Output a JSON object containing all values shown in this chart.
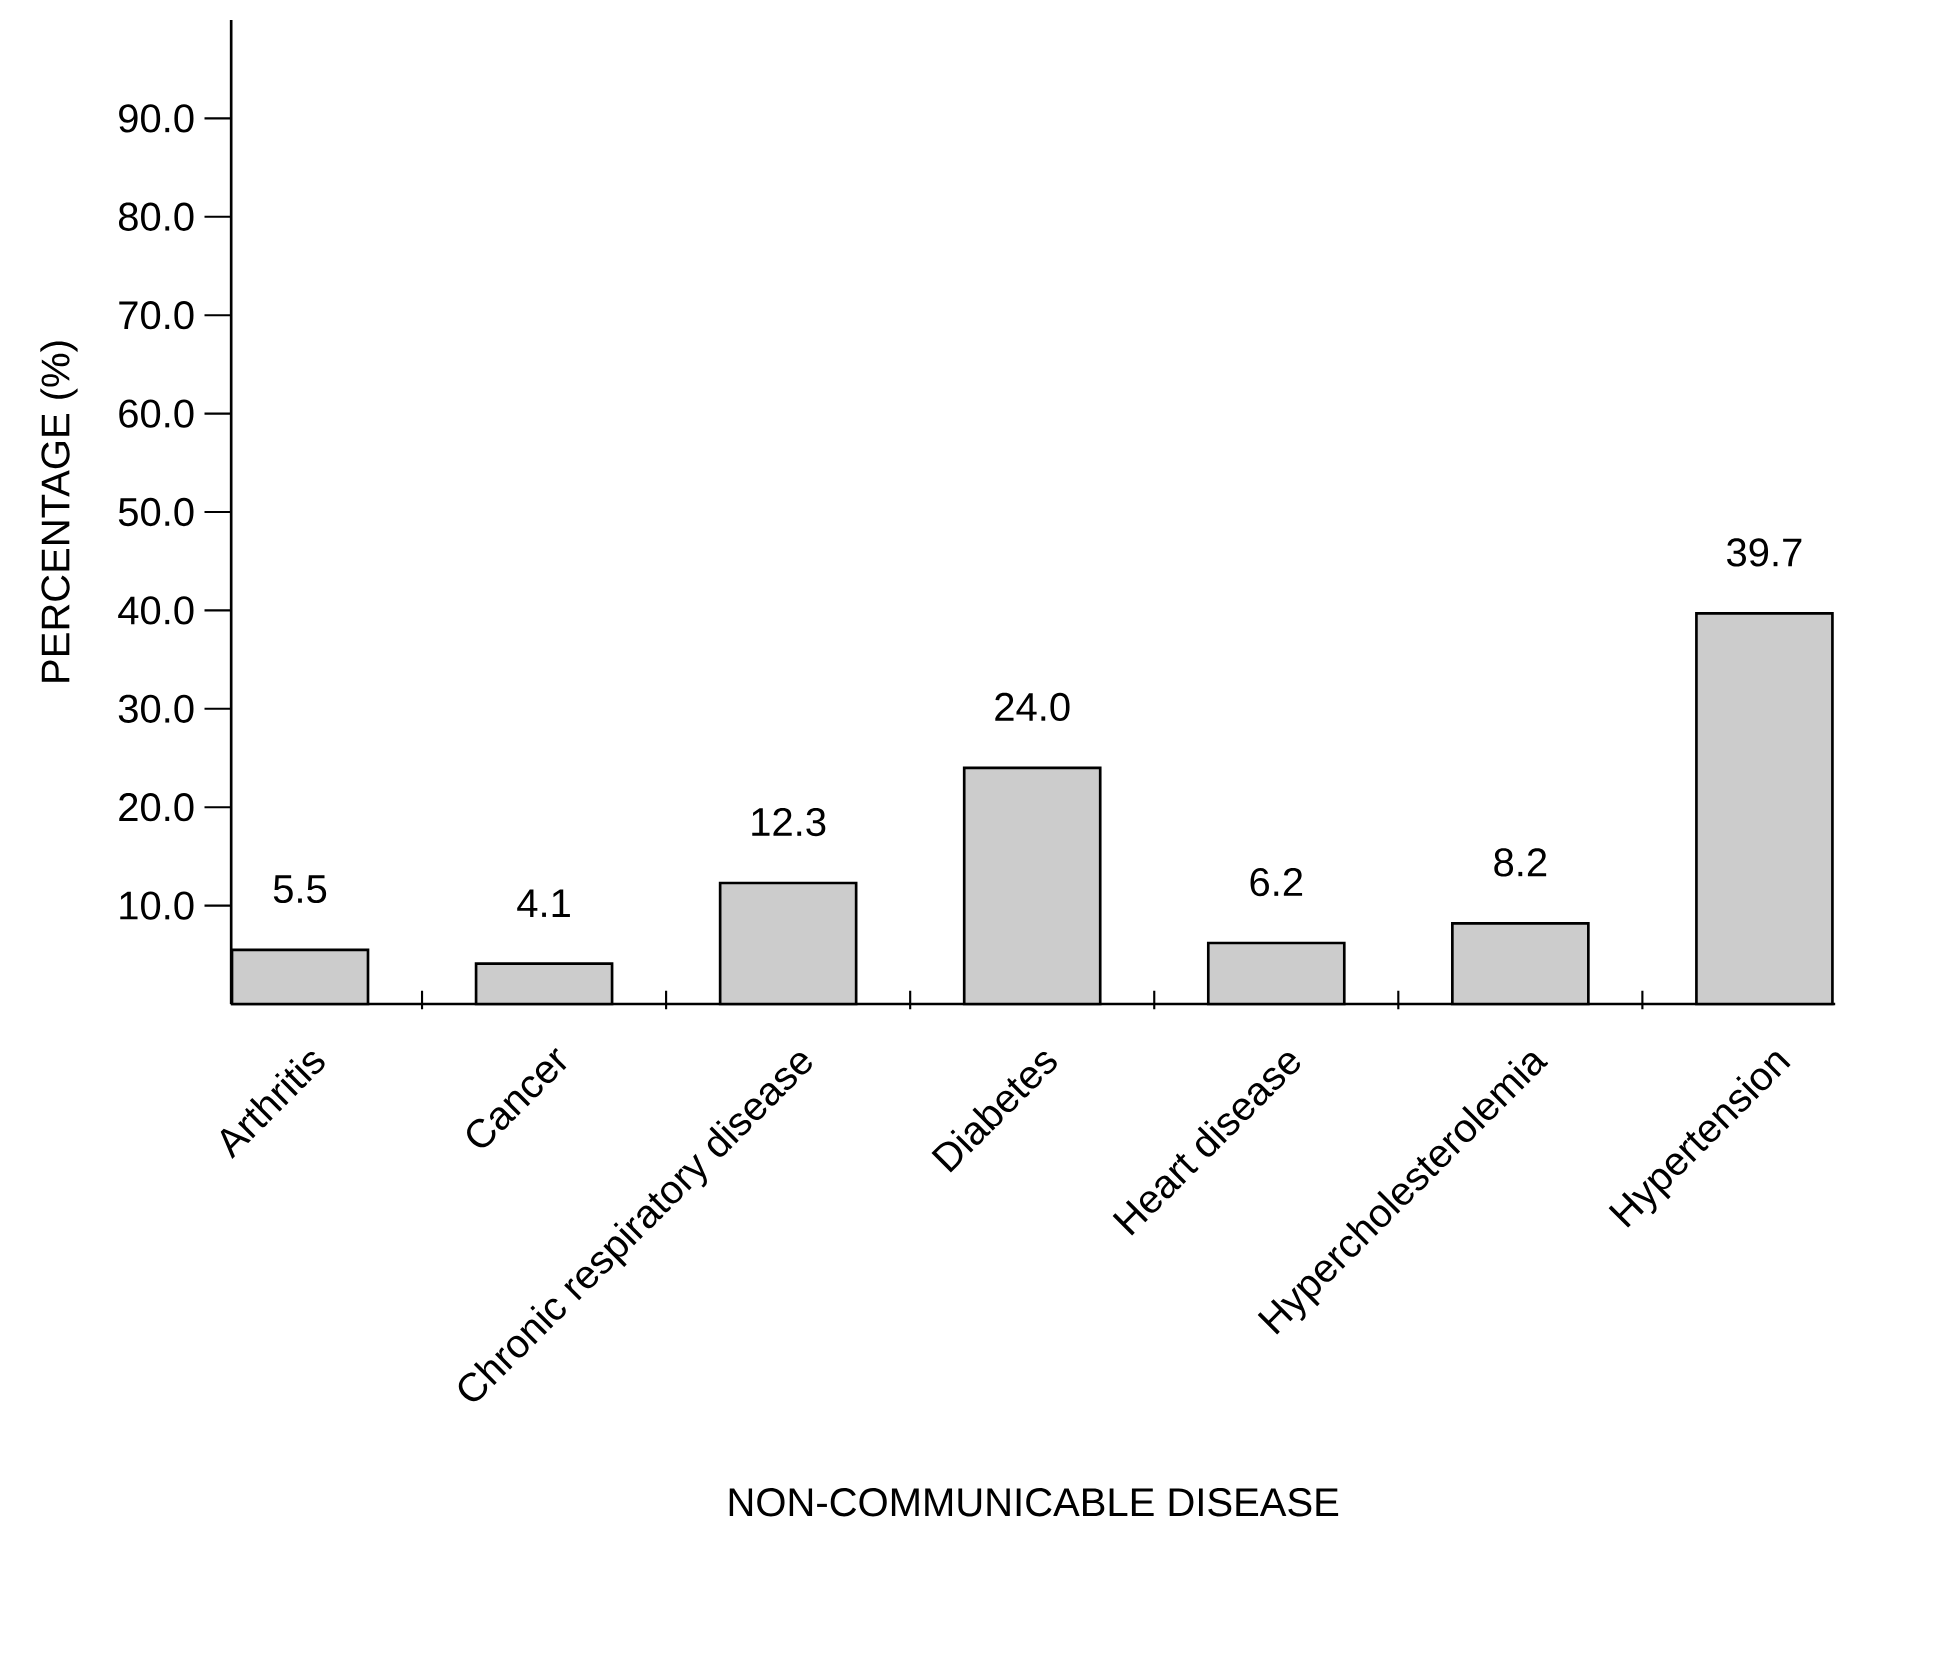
{
  "chart_data": {
    "type": "bar",
    "xlabel": "NON-COMMUNICABLE DISEASE",
    "ylabel": "PERCENTAGE (%)",
    "categories": [
      "Arthritis",
      "Cancer",
      "Chronic respiratory disease",
      "Diabetes",
      "Heart disease",
      "Hypercholesterolemia",
      "Hypertension"
    ],
    "values": [
      5.5,
      4.1,
      12.3,
      24.0,
      6.2,
      8.2,
      39.7
    ],
    "value_labels": [
      "5.5",
      "4.1",
      "12.3",
      "24.0",
      "6.2",
      "8.2",
      "39.7"
    ],
    "color": "#cccccc",
    "ylim": [
      0,
      100
    ],
    "yticks": [
      {
        "value": 10,
        "label": "10.0"
      },
      {
        "value": 20,
        "label": "20.0"
      },
      {
        "value": 30,
        "label": "30.0"
      },
      {
        "value": 40,
        "label": "40.0"
      },
      {
        "value": 50,
        "label": "50.0"
      },
      {
        "value": 60,
        "label": "60.0"
      },
      {
        "value": 70,
        "label": "70.0"
      },
      {
        "value": 80,
        "label": "80.0"
      },
      {
        "value": 90,
        "label": "90.0"
      }
    ],
    "grid": false
  }
}
